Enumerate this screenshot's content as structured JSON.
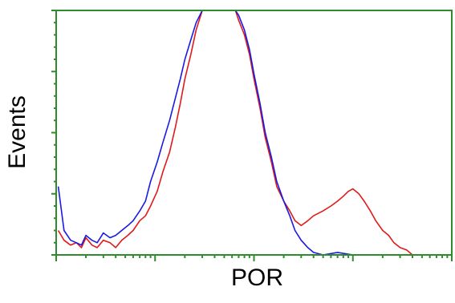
{
  "chart_data": {
    "type": "histogram",
    "xlabel": "POR",
    "ylabel": "Events",
    "xscale": "log",
    "xlim": [
      1,
      10000
    ],
    "ylim": [
      0,
      100
    ],
    "grid": false,
    "axis_color": "#2e8b2e",
    "series": [
      {
        "color": "#1a1ae6",
        "x": [
          1.05,
          1.2,
          1.4,
          1.6,
          1.8,
          2,
          2.3,
          2.6,
          3,
          3.5,
          4,
          4.6,
          5.3,
          6,
          7,
          8,
          9,
          10.5,
          12,
          14,
          16,
          18,
          20,
          23,
          26,
          30,
          34,
          38,
          42,
          46,
          50,
          55,
          60,
          65,
          70,
          80,
          90,
          100,
          115,
          130,
          150,
          170,
          200,
          230,
          260,
          300,
          350,
          400,
          500,
          700,
          1000,
          2000,
          5000,
          10000
        ],
        "y": [
          28,
          10,
          6,
          5,
          4,
          8,
          6,
          5,
          9,
          7,
          8,
          10,
          12,
          14,
          18,
          22,
          30,
          38,
          46,
          55,
          64,
          72,
          80,
          88,
          95,
          100,
          100,
          100,
          100,
          100,
          100,
          100,
          100,
          100,
          98,
          92,
          84,
          74,
          62,
          50,
          40,
          30,
          22,
          16,
          10,
          6,
          3,
          1,
          0,
          1,
          0,
          0,
          0,
          0
        ]
      },
      {
        "color": "#e01a1a",
        "x": [
          1.05,
          1.2,
          1.4,
          1.6,
          1.8,
          2,
          2.3,
          2.6,
          3,
          3.5,
          4,
          4.6,
          5.3,
          6,
          7,
          8,
          9,
          10.5,
          12,
          14,
          16,
          18,
          20,
          23,
          26,
          30,
          34,
          38,
          42,
          46,
          50,
          55,
          60,
          65,
          70,
          80,
          90,
          100,
          115,
          130,
          150,
          170,
          200,
          230,
          260,
          300,
          350,
          400,
          500,
          600,
          700,
          800,
          900,
          1000,
          1150,
          1300,
          1500,
          1700,
          2000,
          2300,
          2600,
          3000,
          3500,
          4000,
          10000
        ],
        "y": [
          10,
          6,
          4,
          5,
          3,
          7,
          4,
          3,
          6,
          5,
          3,
          6,
          8,
          10,
          14,
          16,
          20,
          26,
          34,
          42,
          52,
          62,
          72,
          82,
          92,
          100,
          100,
          100,
          100,
          100,
          100,
          100,
          100,
          100,
          96,
          90,
          82,
          72,
          60,
          48,
          38,
          28,
          22,
          18,
          14,
          12,
          14,
          16,
          18,
          20,
          22,
          24,
          26,
          27,
          25,
          22,
          18,
          14,
          10,
          8,
          5,
          3,
          2,
          0,
          0
        ]
      }
    ]
  }
}
